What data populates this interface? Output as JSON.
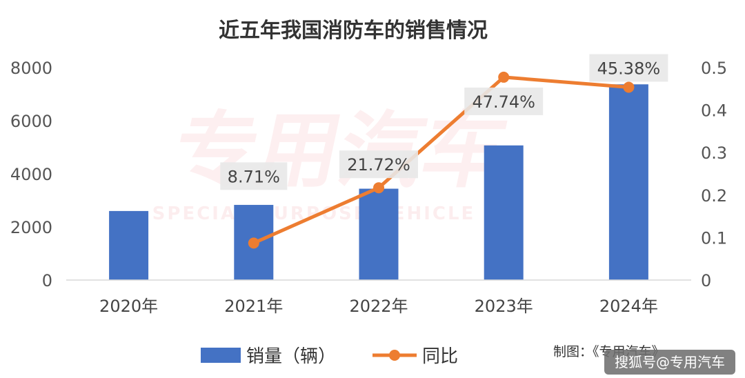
{
  "chart_data": {
    "type": "bar+line",
    "title": "近五年我国消防车的销售情况",
    "categories": [
      "2020年",
      "2021年",
      "2022年",
      "2023年",
      "2024年"
    ],
    "series": [
      {
        "name": "销量（辆）",
        "type": "bar",
        "axis": "left",
        "color": "#4472c4",
        "values": [
          2600,
          2830,
          3440,
          5070,
          7370
        ]
      },
      {
        "name": "同比",
        "type": "line",
        "axis": "right",
        "color": "#ed7d31",
        "values": [
          null,
          0.0871,
          0.2172,
          0.4774,
          0.4538
        ],
        "labels": [
          null,
          "8.71%",
          "21.72%",
          "47.74%",
          "45.38%"
        ]
      }
    ],
    "y_left": {
      "range": [
        0,
        8000
      ],
      "ticks": [
        "0",
        "2000",
        "4000",
        "6000",
        "8000"
      ]
    },
    "y_right": {
      "range": [
        0,
        0.5
      ],
      "ticks": [
        "0",
        "0.1",
        "0.2",
        "0.3",
        "0.4",
        "0.5"
      ]
    },
    "grid": false,
    "legend_position": "bottom"
  },
  "watermark": {
    "main": "专用汽车",
    "sub": "SPECIAL PURPOSE VEHICLE"
  },
  "credit": "制图：《专用汽车》",
  "badge": "搜狐号@专用汽车"
}
